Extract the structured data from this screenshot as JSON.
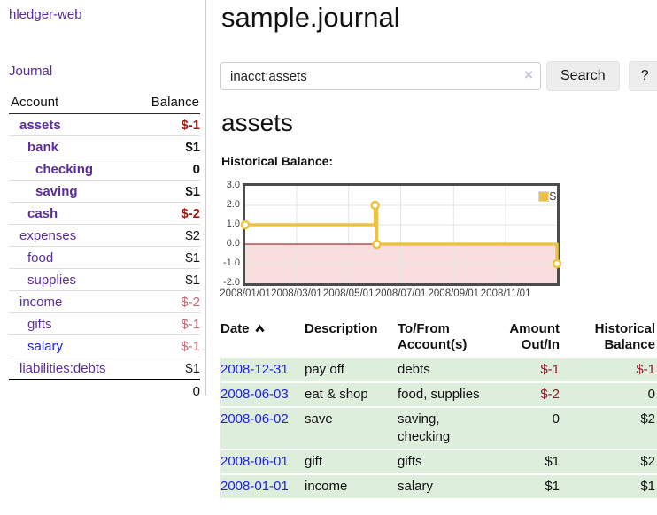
{
  "sidebar": {
    "app_title": "hledger-web",
    "journal_link": "Journal",
    "accounts": {
      "col_account": "Account",
      "col_balance": "Balance",
      "rows": [
        {
          "name": "assets",
          "balance": "$-1",
          "depth": 1,
          "emphasis": true
        },
        {
          "name": "bank",
          "balance": "$1",
          "depth": 2,
          "emphasis": true
        },
        {
          "name": "checking",
          "balance": "0",
          "depth": 3,
          "emphasis": true
        },
        {
          "name": "saving",
          "balance": "$1",
          "depth": 3,
          "emphasis": true
        },
        {
          "name": "cash",
          "balance": "$-2",
          "depth": 2,
          "emphasis": true
        },
        {
          "name": "expenses",
          "balance": "$2",
          "depth": 1
        },
        {
          "name": "food",
          "balance": "$1",
          "depth": 2
        },
        {
          "name": "supplies",
          "balance": "$1",
          "depth": 2
        },
        {
          "name": "income",
          "balance": "$-2",
          "depth": 1
        },
        {
          "name": "gifts",
          "balance": "$-1",
          "depth": 2
        },
        {
          "name": "salary",
          "balance": "$-1",
          "depth": 2,
          "visited": false
        },
        {
          "name": "liabilities:debts",
          "balance": "$1",
          "depth": 1
        }
      ],
      "total": "0"
    }
  },
  "main": {
    "page_title": "sample.journal",
    "search": {
      "query": "inacct:assets",
      "clear_icon": "×",
      "search_button_label": "Search",
      "help_button_label": "?"
    },
    "account_heading": "assets"
  },
  "chart_data": {
    "type": "line",
    "step": true,
    "title": "Historical Balance:",
    "series": [
      {
        "name": "$",
        "color": "#edc240",
        "points": [
          [
            "2008-01-01",
            1
          ],
          [
            "2008-06-01",
            2
          ],
          [
            "2008-06-03",
            0
          ],
          [
            "2008-12-31",
            -1
          ]
        ]
      }
    ],
    "x_ticks": [
      "2008/01/01",
      "2008/03/01",
      "2008/05/01",
      "2008/07/01",
      "2008/09/01",
      "2008/11/01"
    ],
    "y_ticks": [
      "3.0",
      "2.0",
      "1.0",
      "0.0",
      "-1.0",
      "-2.0"
    ],
    "ylim": [
      -2,
      3
    ],
    "xrange": [
      "2008-01-01",
      "2008-12-31"
    ],
    "grid": true,
    "legend_position": "top-right",
    "zero_line_color": "#8b0000",
    "negative_region_color": "#f9dede"
  },
  "register": {
    "headers": {
      "date": "Date",
      "description": "Description",
      "accounts": "To/From Account(s)",
      "amount": "Amount Out/In",
      "balance": "Historical Balance"
    },
    "rows": [
      {
        "date": "2008-12-31",
        "description": "pay off",
        "accounts": "debts",
        "amount": "$-1",
        "balance": "$-1"
      },
      {
        "date": "2008-06-03",
        "description": "eat & shop",
        "accounts": "food, supplies",
        "amount": "$-2",
        "balance": "0"
      },
      {
        "date": "2008-06-02",
        "description": "save",
        "accounts": "saving, checking",
        "amount": "0",
        "balance": "$2"
      },
      {
        "date": "2008-06-01",
        "description": "gift",
        "accounts": "gifts",
        "amount": "$1",
        "balance": "$2"
      },
      {
        "date": "2008-01-01",
        "description": "income",
        "accounts": "salary",
        "amount": "$1",
        "balance": "$1"
      }
    ]
  }
}
